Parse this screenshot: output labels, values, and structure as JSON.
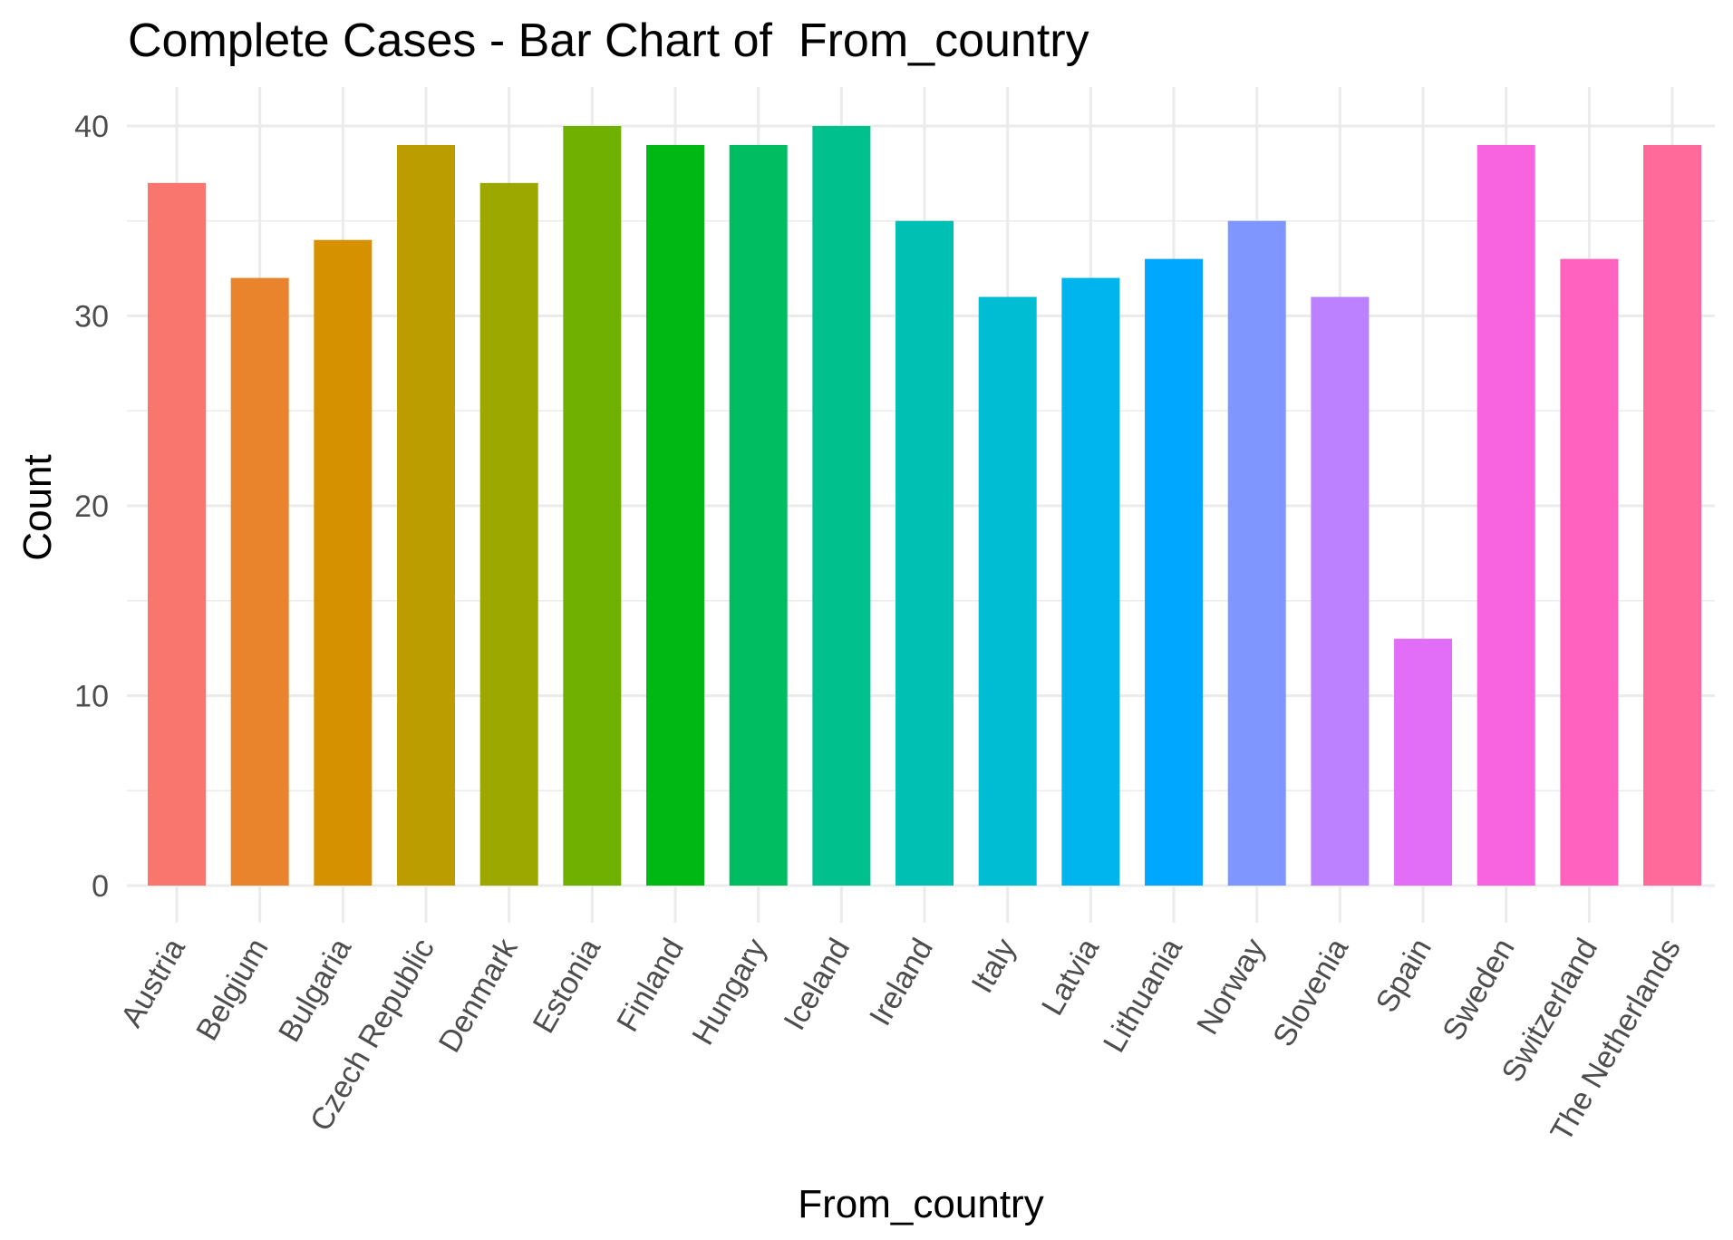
{
  "chart_data": {
    "type": "bar",
    "title": "Complete Cases - Bar Chart of  From_country",
    "xlabel": "From_country",
    "ylabel": "Count",
    "ylim": [
      0,
      40
    ],
    "yticks": [
      0,
      10,
      20,
      30,
      40
    ],
    "grid": true,
    "legend": "none",
    "categories": [
      "Austria",
      "Belgium",
      "Bulgaria",
      "Czech Republic",
      "Denmark",
      "Estonia",
      "Finland",
      "Hungary",
      "Iceland",
      "Ireland",
      "Italy",
      "Latvia",
      "Lithuania",
      "Norway",
      "Slovenia",
      "Spain",
      "Sweden",
      "Switzerland",
      "The Netherlands"
    ],
    "values": [
      37,
      32,
      34,
      39,
      37,
      40,
      39,
      39,
      40,
      35,
      31,
      32,
      33,
      35,
      31,
      13,
      39,
      33,
      39
    ],
    "colors": [
      "#F8766D",
      "#E9842C",
      "#D69100",
      "#BC9D00",
      "#9CA700",
      "#6FB000",
      "#00B813",
      "#00BD61",
      "#00C08E",
      "#00C0B4",
      "#00BDD4",
      "#00B5EE",
      "#00A7FF",
      "#7F96FF",
      "#BC81FF",
      "#E26EF7",
      "#F863DF",
      "#FF62BF",
      "#FF6A9A"
    ]
  }
}
